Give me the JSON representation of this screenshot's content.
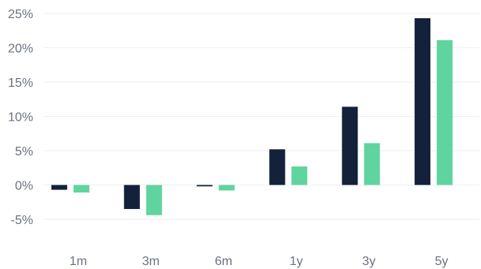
{
  "colors": {
    "series_1": "#14213a",
    "series_2": "#5fd49e",
    "grid": "#eceff3",
    "tick_text": "#6b7280"
  },
  "chart_data": {
    "type": "bar",
    "title": "",
    "xlabel": "",
    "ylabel": "",
    "categories": [
      "1m",
      "3m",
      "6m",
      "1y",
      "3y",
      "5y"
    ],
    "series": [
      {
        "values": [
          -0.7,
          -3.5,
          -0.2,
          5.2,
          11.4,
          24.3
        ]
      },
      {
        "values": [
          -1.1,
          -4.4,
          -0.8,
          2.7,
          6.1,
          21.1
        ]
      }
    ],
    "ylim": [
      -7,
      26
    ],
    "yticks": [
      -5,
      0,
      5,
      10,
      15,
      20,
      25
    ],
    "ytick_labels": [
      "-5%",
      "0%",
      "5%",
      "10%",
      "15%",
      "20%",
      "25%"
    ],
    "grid": true,
    "legend": "none"
  }
}
